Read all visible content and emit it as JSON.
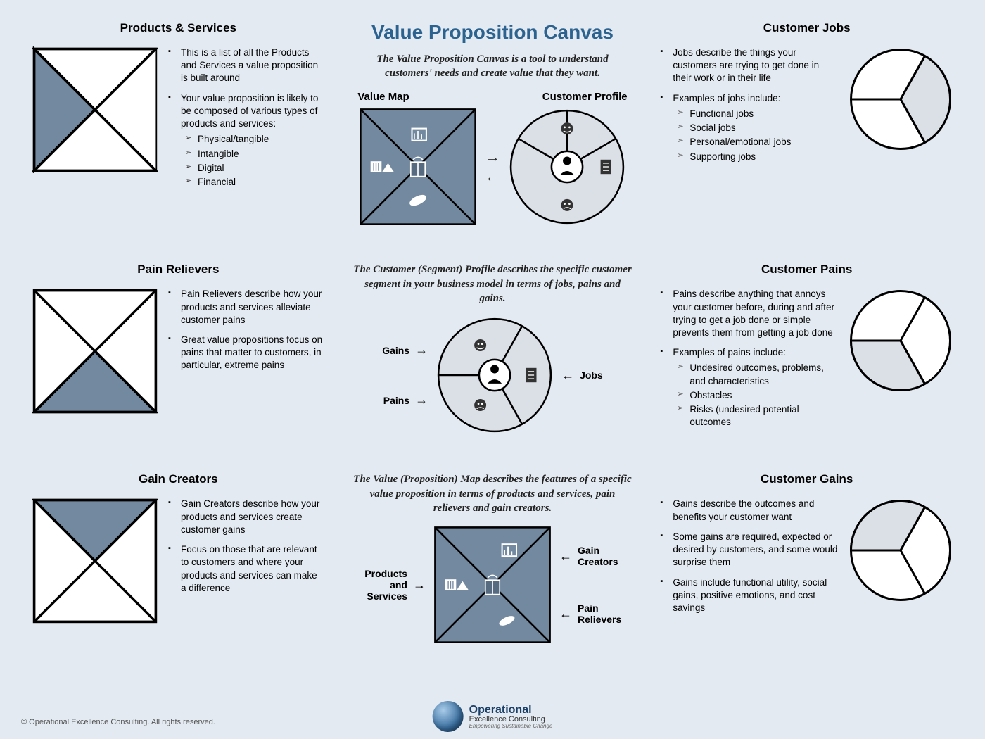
{
  "colors": {
    "page_bg": "#e3eaf1",
    "square_fill": "#7289a0",
    "square_dark": "#566a80",
    "stroke": "#000000",
    "circle_light": "#dbe0e7",
    "circle_white": "#ffffff",
    "accent_title": "#2b628f"
  },
  "title": "Value Proposition Canvas",
  "intro1": "The Value Proposition Canvas is a tool to understand customers' needs and create value that they want.",
  "intro2": "The Customer (Segment) Profile describes the specific customer segment in your business model in terms of jobs, pains and gains.",
  "intro3": "The Value (Proposition) Map describes the features of a specific value proposition in terms of products and services, pain relievers and gain creators.",
  "diagram_labels": {
    "left": "Value Map",
    "right": "Customer Profile"
  },
  "labels": {
    "gains": "Gains",
    "pains": "Pains",
    "jobs": "Jobs",
    "gain_creators": "Gain Creators",
    "pain_relievers": "Pain Relievers",
    "products_services": "Products and Services"
  },
  "left": {
    "products": {
      "title": "Products & Services",
      "bullets": [
        {
          "text": "This is a list of all the Products and Services a value proposition is built around"
        },
        {
          "text": "Your value proposition is likely to be composed of various types of products and services:",
          "sub": [
            "Physical/tangible",
            "Intangible",
            "Digital",
            "Financial"
          ]
        }
      ],
      "highlight": "left"
    },
    "pain_relievers": {
      "title": "Pain Relievers",
      "bullets": [
        {
          "text": "Pain Relievers describe how your products and services alleviate customer pains"
        },
        {
          "text": "Great value propositions focus on pains that matter to customers, in particular, extreme pains"
        }
      ],
      "highlight": "bottom"
    },
    "gain_creators": {
      "title": "Gain Creators",
      "bullets": [
        {
          "text": "Gain Creators describe how your products and services create customer gains"
        },
        {
          "text": "Focus on those that are relevant to customers and where your products and services can make a difference"
        }
      ],
      "highlight": "top"
    }
  },
  "right": {
    "jobs": {
      "title": "Customer Jobs",
      "bullets": [
        {
          "text": "Jobs describe the things your customers are trying to get done in their work or in their life"
        },
        {
          "text": "Examples of jobs include:",
          "sub": [
            "Functional jobs",
            "Social jobs",
            "Personal/emotional jobs",
            "Supporting jobs"
          ]
        }
      ],
      "highlight": "right"
    },
    "pains": {
      "title": "Customer Pains",
      "bullets": [
        {
          "text": "Pains describe anything that annoys your customer before, during and after trying to get a job done or simple prevents them from getting a job done"
        },
        {
          "text": "Examples of pains include:",
          "sub": [
            "Undesired outcomes, problems, and characteristics",
            "Obstacles",
            "Risks (undesired potential outcomes"
          ]
        }
      ],
      "highlight": "bottom"
    },
    "gains": {
      "title": "Customer Gains",
      "bullets": [
        {
          "text": "Gains describe the outcomes and benefits your customer want"
        },
        {
          "text": "Some gains are required, expected or desired by customers, and some would surprise them"
        },
        {
          "text": "Gains include functional utility, social gains, positive emotions, and cost savings"
        }
      ],
      "highlight": "top"
    }
  },
  "footer": "© Operational Excellence Consulting. All rights reserved.",
  "logo": {
    "line1": "Operational",
    "line2": "Excellence Consulting",
    "line3": "Empowering Sustainable Change"
  }
}
